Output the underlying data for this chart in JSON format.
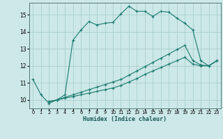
{
  "xlabel": "Humidex (Indice chaleur)",
  "bg_color": "#cce8e8",
  "grid_color": "#aacece",
  "line_color": "#1a7a6e",
  "xlim": [
    -0.5,
    23.5
  ],
  "ylim": [
    9.5,
    15.7
  ],
  "yticks": [
    10,
    11,
    12,
    13,
    14,
    15
  ],
  "xticks": [
    0,
    1,
    2,
    3,
    4,
    5,
    6,
    7,
    8,
    9,
    10,
    11,
    12,
    13,
    14,
    15,
    16,
    17,
    18,
    19,
    20,
    21,
    22,
    23
  ],
  "series1_x": [
    0,
    1,
    2,
    3,
    4,
    5,
    6,
    7,
    8,
    9,
    10,
    11,
    12,
    13,
    14,
    15,
    16,
    17,
    18,
    19,
    20,
    21,
    22,
    23
  ],
  "series1_y": [
    11.2,
    10.3,
    9.8,
    10.0,
    10.3,
    13.5,
    14.1,
    14.6,
    14.4,
    14.5,
    14.55,
    15.05,
    15.5,
    15.2,
    15.2,
    14.9,
    15.2,
    15.15,
    14.8,
    14.5,
    14.1,
    12.3,
    12.0,
    12.3
  ],
  "series2_x": [
    2,
    3,
    4,
    5,
    6,
    7,
    8,
    9,
    10,
    11,
    12,
    13,
    14,
    15,
    16,
    17,
    18,
    19,
    20,
    21,
    22,
    23
  ],
  "series2_y": [
    9.9,
    10.0,
    10.15,
    10.3,
    10.45,
    10.6,
    10.75,
    10.9,
    11.05,
    11.2,
    11.45,
    11.7,
    11.95,
    12.2,
    12.45,
    12.7,
    12.95,
    13.2,
    12.3,
    12.05,
    12.0,
    12.3
  ],
  "series3_x": [
    2,
    3,
    4,
    5,
    6,
    7,
    8,
    9,
    10,
    11,
    12,
    13,
    14,
    15,
    16,
    17,
    18,
    19,
    20,
    21,
    22,
    23
  ],
  "series3_y": [
    9.9,
    10.0,
    10.1,
    10.2,
    10.3,
    10.4,
    10.5,
    10.6,
    10.7,
    10.85,
    11.05,
    11.25,
    11.5,
    11.7,
    11.9,
    12.1,
    12.3,
    12.5,
    12.1,
    12.0,
    12.0,
    12.3
  ]
}
